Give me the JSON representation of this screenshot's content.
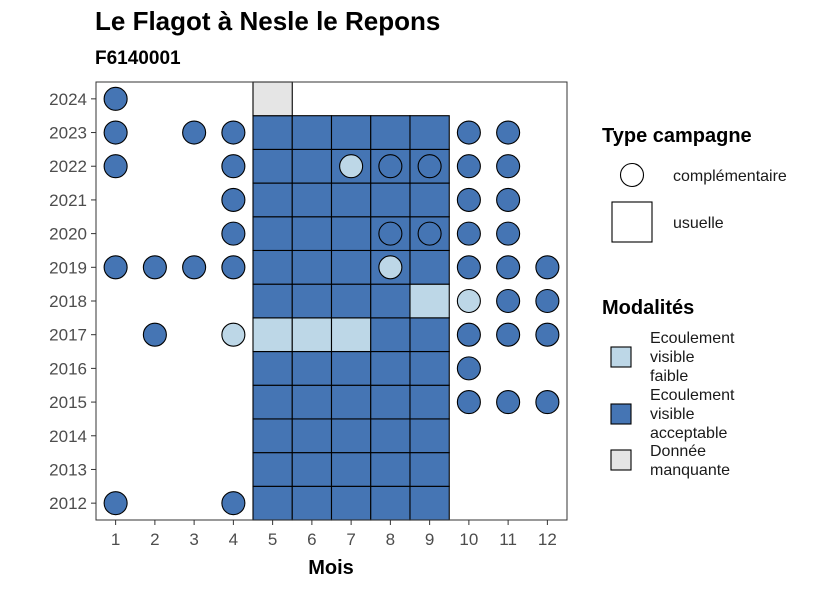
{
  "chart_data": {
    "type": "heatmap",
    "title": "Le Flagot à Nesle le Repons",
    "subtitle": "F6140001",
    "xlabel": "Mois",
    "ylabel": "",
    "x_ticks": [
      1,
      2,
      3,
      4,
      5,
      6,
      7,
      8,
      9,
      10,
      11,
      12
    ],
    "y_ticks": [
      2012,
      2013,
      2014,
      2015,
      2016,
      2017,
      2018,
      2019,
      2020,
      2021,
      2022,
      2023,
      2024
    ],
    "xlim": [
      0.5,
      12.5
    ],
    "ylim": [
      2011.5,
      2024.5
    ],
    "legend_shape": {
      "title": "Type campagne",
      "entries": [
        {
          "key": "complementaire",
          "label": "complémentaire",
          "shape": "circle"
        },
        {
          "key": "usuelle",
          "label": "usuelle",
          "shape": "square"
        }
      ]
    },
    "legend_fill": {
      "title": "Modalités",
      "entries": [
        {
          "key": "faible",
          "label_lines": [
            "Ecoulement",
            "visible",
            "faible"
          ],
          "color": "#bdd7e7"
        },
        {
          "key": "acceptable",
          "label_lines": [
            "Ecoulement",
            "visible",
            "acceptable"
          ],
          "color": "#4575b4"
        },
        {
          "key": "manquante",
          "label_lines": [
            "Donnée",
            "manquante"
          ],
          "color": "#e5e5e5"
        }
      ]
    },
    "observations": [
      {
        "year": 2012,
        "month": 5,
        "type": "usuelle",
        "modalite": "acceptable"
      },
      {
        "year": 2012,
        "month": 6,
        "type": "usuelle",
        "modalite": "acceptable"
      },
      {
        "year": 2012,
        "month": 7,
        "type": "usuelle",
        "modalite": "acceptable"
      },
      {
        "year": 2012,
        "month": 8,
        "type": "usuelle",
        "modalite": "acceptable"
      },
      {
        "year": 2012,
        "month": 9,
        "type": "usuelle",
        "modalite": "acceptable"
      },
      {
        "year": 2013,
        "month": 5,
        "type": "usuelle",
        "modalite": "acceptable"
      },
      {
        "year": 2013,
        "month": 6,
        "type": "usuelle",
        "modalite": "acceptable"
      },
      {
        "year": 2013,
        "month": 7,
        "type": "usuelle",
        "modalite": "acceptable"
      },
      {
        "year": 2013,
        "month": 8,
        "type": "usuelle",
        "modalite": "acceptable"
      },
      {
        "year": 2013,
        "month": 9,
        "type": "usuelle",
        "modalite": "acceptable"
      },
      {
        "year": 2014,
        "month": 5,
        "type": "usuelle",
        "modalite": "acceptable"
      },
      {
        "year": 2014,
        "month": 6,
        "type": "usuelle",
        "modalite": "acceptable"
      },
      {
        "year": 2014,
        "month": 7,
        "type": "usuelle",
        "modalite": "acceptable"
      },
      {
        "year": 2014,
        "month": 8,
        "type": "usuelle",
        "modalite": "acceptable"
      },
      {
        "year": 2014,
        "month": 9,
        "type": "usuelle",
        "modalite": "acceptable"
      },
      {
        "year": 2015,
        "month": 5,
        "type": "usuelle",
        "modalite": "acceptable"
      },
      {
        "year": 2015,
        "month": 6,
        "type": "usuelle",
        "modalite": "acceptable"
      },
      {
        "year": 2015,
        "month": 7,
        "type": "usuelle",
        "modalite": "acceptable"
      },
      {
        "year": 2015,
        "month": 8,
        "type": "usuelle",
        "modalite": "acceptable"
      },
      {
        "year": 2015,
        "month": 9,
        "type": "usuelle",
        "modalite": "acceptable"
      },
      {
        "year": 2016,
        "month": 5,
        "type": "usuelle",
        "modalite": "acceptable"
      },
      {
        "year": 2016,
        "month": 6,
        "type": "usuelle",
        "modalite": "acceptable"
      },
      {
        "year": 2016,
        "month": 7,
        "type": "usuelle",
        "modalite": "acceptable"
      },
      {
        "year": 2016,
        "month": 8,
        "type": "usuelle",
        "modalite": "acceptable"
      },
      {
        "year": 2016,
        "month": 9,
        "type": "usuelle",
        "modalite": "acceptable"
      },
      {
        "year": 2017,
        "month": 5,
        "type": "usuelle",
        "modalite": "faible"
      },
      {
        "year": 2017,
        "month": 6,
        "type": "usuelle",
        "modalite": "faible"
      },
      {
        "year": 2017,
        "month": 7,
        "type": "usuelle",
        "modalite": "faible"
      },
      {
        "year": 2017,
        "month": 8,
        "type": "usuelle",
        "modalite": "acceptable"
      },
      {
        "year": 2017,
        "month": 9,
        "type": "usuelle",
        "modalite": "acceptable"
      },
      {
        "year": 2018,
        "month": 5,
        "type": "usuelle",
        "modalite": "acceptable"
      },
      {
        "year": 2018,
        "month": 6,
        "type": "usuelle",
        "modalite": "acceptable"
      },
      {
        "year": 2018,
        "month": 7,
        "type": "usuelle",
        "modalite": "acceptable"
      },
      {
        "year": 2018,
        "month": 8,
        "type": "usuelle",
        "modalite": "acceptable"
      },
      {
        "year": 2018,
        "month": 9,
        "type": "usuelle",
        "modalite": "faible"
      },
      {
        "year": 2019,
        "month": 5,
        "type": "usuelle",
        "modalite": "acceptable"
      },
      {
        "year": 2019,
        "month": 6,
        "type": "usuelle",
        "modalite": "acceptable"
      },
      {
        "year": 2019,
        "month": 7,
        "type": "usuelle",
        "modalite": "acceptable"
      },
      {
        "year": 2019,
        "month": 8,
        "type": "usuelle",
        "modalite": "acceptable"
      },
      {
        "year": 2019,
        "month": 9,
        "type": "usuelle",
        "modalite": "acceptable"
      },
      {
        "year": 2020,
        "month": 5,
        "type": "usuelle",
        "modalite": "acceptable"
      },
      {
        "year": 2020,
        "month": 6,
        "type": "usuelle",
        "modalite": "acceptable"
      },
      {
        "year": 2020,
        "month": 7,
        "type": "usuelle",
        "modalite": "acceptable"
      },
      {
        "year": 2020,
        "month": 8,
        "type": "usuelle",
        "modalite": "acceptable"
      },
      {
        "year": 2020,
        "month": 9,
        "type": "usuelle",
        "modalite": "acceptable"
      },
      {
        "year": 2021,
        "month": 5,
        "type": "usuelle",
        "modalite": "acceptable"
      },
      {
        "year": 2021,
        "month": 6,
        "type": "usuelle",
        "modalite": "acceptable"
      },
      {
        "year": 2021,
        "month": 7,
        "type": "usuelle",
        "modalite": "acceptable"
      },
      {
        "year": 2021,
        "month": 8,
        "type": "usuelle",
        "modalite": "acceptable"
      },
      {
        "year": 2021,
        "month": 9,
        "type": "usuelle",
        "modalite": "acceptable"
      },
      {
        "year": 2022,
        "month": 5,
        "type": "usuelle",
        "modalite": "acceptable"
      },
      {
        "year": 2022,
        "month": 6,
        "type": "usuelle",
        "modalite": "acceptable"
      },
      {
        "year": 2022,
        "month": 7,
        "type": "usuelle",
        "modalite": "acceptable"
      },
      {
        "year": 2022,
        "month": 8,
        "type": "usuelle",
        "modalite": "acceptable"
      },
      {
        "year": 2022,
        "month": 9,
        "type": "usuelle",
        "modalite": "acceptable"
      },
      {
        "year": 2023,
        "month": 5,
        "type": "usuelle",
        "modalite": "acceptable"
      },
      {
        "year": 2023,
        "month": 6,
        "type": "usuelle",
        "modalite": "acceptable"
      },
      {
        "year": 2023,
        "month": 7,
        "type": "usuelle",
        "modalite": "acceptable"
      },
      {
        "year": 2023,
        "month": 8,
        "type": "usuelle",
        "modalite": "acceptable"
      },
      {
        "year": 2023,
        "month": 9,
        "type": "usuelle",
        "modalite": "acceptable"
      },
      {
        "year": 2024,
        "month": 5,
        "type": "usuelle",
        "modalite": "manquante"
      },
      {
        "year": 2024,
        "month": 1,
        "type": "complementaire",
        "modalite": "acceptable"
      },
      {
        "year": 2023,
        "month": 1,
        "type": "complementaire",
        "modalite": "acceptable"
      },
      {
        "year": 2023,
        "month": 3,
        "type": "complementaire",
        "modalite": "acceptable"
      },
      {
        "year": 2023,
        "month": 4,
        "type": "complementaire",
        "modalite": "acceptable"
      },
      {
        "year": 2023,
        "month": 10,
        "type": "complementaire",
        "modalite": "acceptable"
      },
      {
        "year": 2023,
        "month": 11,
        "type": "complementaire",
        "modalite": "acceptable"
      },
      {
        "year": 2022,
        "month": 1,
        "type": "complementaire",
        "modalite": "acceptable"
      },
      {
        "year": 2022,
        "month": 4,
        "type": "complementaire",
        "modalite": "acceptable"
      },
      {
        "year": 2022,
        "month": 7,
        "type": "complementaire",
        "modalite": "faible"
      },
      {
        "year": 2022,
        "month": 8,
        "type": "complementaire",
        "modalite": "acceptable"
      },
      {
        "year": 2022,
        "month": 9,
        "type": "complementaire",
        "modalite": "acceptable"
      },
      {
        "year": 2022,
        "month": 10,
        "type": "complementaire",
        "modalite": "acceptable"
      },
      {
        "year": 2022,
        "month": 11,
        "type": "complementaire",
        "modalite": "acceptable"
      },
      {
        "year": 2021,
        "month": 4,
        "type": "complementaire",
        "modalite": "acceptable"
      },
      {
        "year": 2021,
        "month": 10,
        "type": "complementaire",
        "modalite": "acceptable"
      },
      {
        "year": 2021,
        "month": 11,
        "type": "complementaire",
        "modalite": "acceptable"
      },
      {
        "year": 2020,
        "month": 4,
        "type": "complementaire",
        "modalite": "acceptable"
      },
      {
        "year": 2020,
        "month": 8,
        "type": "complementaire",
        "modalite": "acceptable"
      },
      {
        "year": 2020,
        "month": 9,
        "type": "complementaire",
        "modalite": "acceptable"
      },
      {
        "year": 2020,
        "month": 10,
        "type": "complementaire",
        "modalite": "acceptable"
      },
      {
        "year": 2020,
        "month": 11,
        "type": "complementaire",
        "modalite": "acceptable"
      },
      {
        "year": 2019,
        "month": 1,
        "type": "complementaire",
        "modalite": "acceptable"
      },
      {
        "year": 2019,
        "month": 2,
        "type": "complementaire",
        "modalite": "acceptable"
      },
      {
        "year": 2019,
        "month": 3,
        "type": "complementaire",
        "modalite": "acceptable"
      },
      {
        "year": 2019,
        "month": 4,
        "type": "complementaire",
        "modalite": "acceptable"
      },
      {
        "year": 2019,
        "month": 8,
        "type": "complementaire",
        "modalite": "faible"
      },
      {
        "year": 2019,
        "month": 10,
        "type": "complementaire",
        "modalite": "acceptable"
      },
      {
        "year": 2019,
        "month": 11,
        "type": "complementaire",
        "modalite": "acceptable"
      },
      {
        "year": 2019,
        "month": 12,
        "type": "complementaire",
        "modalite": "acceptable"
      },
      {
        "year": 2018,
        "month": 10,
        "type": "complementaire",
        "modalite": "faible"
      },
      {
        "year": 2018,
        "month": 11,
        "type": "complementaire",
        "modalite": "acceptable"
      },
      {
        "year": 2018,
        "month": 12,
        "type": "complementaire",
        "modalite": "acceptable"
      },
      {
        "year": 2017,
        "month": 2,
        "type": "complementaire",
        "modalite": "acceptable"
      },
      {
        "year": 2017,
        "month": 4,
        "type": "complementaire",
        "modalite": "faible"
      },
      {
        "year": 2017,
        "month": 10,
        "type": "complementaire",
        "modalite": "acceptable"
      },
      {
        "year": 2017,
        "month": 11,
        "type": "complementaire",
        "modalite": "acceptable"
      },
      {
        "year": 2017,
        "month": 12,
        "type": "complementaire",
        "modalite": "acceptable"
      },
      {
        "year": 2016,
        "month": 10,
        "type": "complementaire",
        "modalite": "acceptable"
      },
      {
        "year": 2015,
        "month": 10,
        "type": "complementaire",
        "modalite": "acceptable"
      },
      {
        "year": 2015,
        "month": 11,
        "type": "complementaire",
        "modalite": "acceptable"
      },
      {
        "year": 2015,
        "month": 12,
        "type": "complementaire",
        "modalite": "acceptable"
      },
      {
        "year": 2012,
        "month": 1,
        "type": "complementaire",
        "modalite": "acceptable"
      },
      {
        "year": 2012,
        "month": 4,
        "type": "complementaire",
        "modalite": "acceptable"
      }
    ]
  }
}
